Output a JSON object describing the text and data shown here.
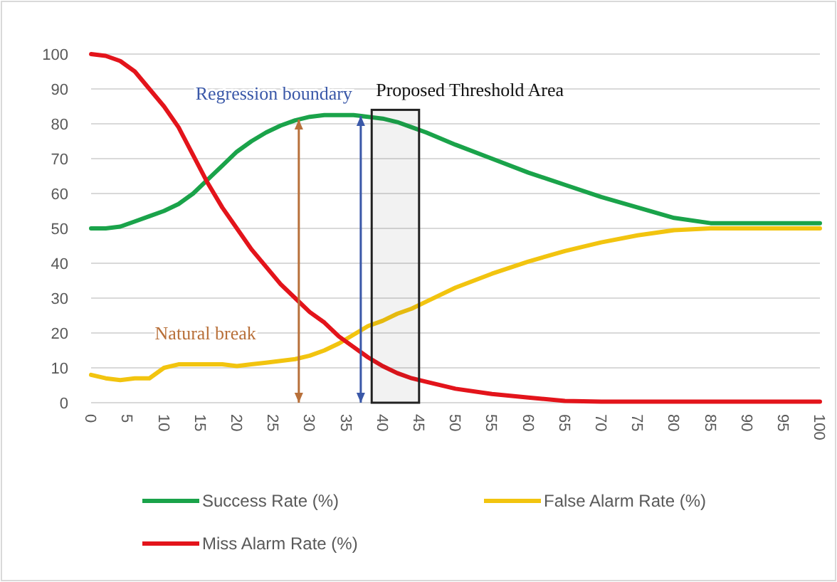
{
  "chart_data": {
    "type": "line",
    "x": [
      0,
      2,
      4,
      6,
      8,
      10,
      12,
      14,
      16,
      18,
      20,
      22,
      24,
      26,
      28,
      30,
      32,
      34,
      36,
      38,
      40,
      42,
      44,
      46,
      50,
      55,
      60,
      65,
      70,
      75,
      80,
      85,
      90,
      95,
      100
    ],
    "series": [
      {
        "name": "Success Rate (%)",
        "color": "#1aa34a",
        "values": [
          50,
          50,
          50.5,
          52,
          53.5,
          55,
          57,
          60,
          64,
          68,
          72,
          75,
          77.5,
          79.5,
          81,
          82,
          82.5,
          82.5,
          82.5,
          82,
          81.5,
          80.5,
          79,
          77.5,
          74,
          70,
          66,
          62.5,
          59,
          56,
          53,
          51.5,
          51.5,
          51.5,
          51.5
        ]
      },
      {
        "name": "False Alarm Rate (%)",
        "color": "#f2c40f",
        "values": [
          8,
          7,
          6.5,
          7,
          7,
          10,
          11,
          11,
          11,
          11,
          10.5,
          11,
          11.5,
          12,
          12.5,
          13.5,
          15,
          17,
          19.5,
          22,
          23.5,
          25.5,
          27,
          29,
          33,
          37,
          40.5,
          43.5,
          46,
          48,
          49.5,
          50,
          50,
          50,
          50
        ]
      },
      {
        "name": "Miss Alarm Rate (%)",
        "color": "#e3141b",
        "values": [
          100,
          99.5,
          98,
          95,
          90,
          85,
          79,
          71,
          63,
          56,
          50,
          44,
          39,
          34,
          30,
          26,
          23,
          19,
          16,
          13,
          10.5,
          8.5,
          7,
          6,
          4,
          2.5,
          1.5,
          0.5,
          0.3,
          0.3,
          0.3,
          0.3,
          0.3,
          0.3,
          0.3
        ]
      }
    ],
    "xlim": [
      0,
      100
    ],
    "xticks": [
      0,
      5,
      10,
      15,
      20,
      25,
      30,
      35,
      40,
      45,
      50,
      55,
      60,
      65,
      70,
      75,
      80,
      85,
      90,
      95,
      100
    ],
    "ylim": [
      0,
      100
    ],
    "yticks": [
      0,
      10,
      20,
      30,
      40,
      50,
      60,
      70,
      80,
      90,
      100
    ],
    "grid": "y",
    "legend": "bottom",
    "marker": "none",
    "line_style": "solid",
    "ref_lines": [
      {
        "axis": "x",
        "value": 37,
        "color": "#3a58a8",
        "label": "Regression boundary"
      },
      {
        "axis": "x",
        "value": 28.5,
        "color": "#b8703a",
        "label": "Natural break"
      }
    ],
    "bands": [
      {
        "axis": "x",
        "from": 38.5,
        "to": 45,
        "label": "Proposed Threshold Area",
        "color": "#222222"
      }
    ]
  }
}
